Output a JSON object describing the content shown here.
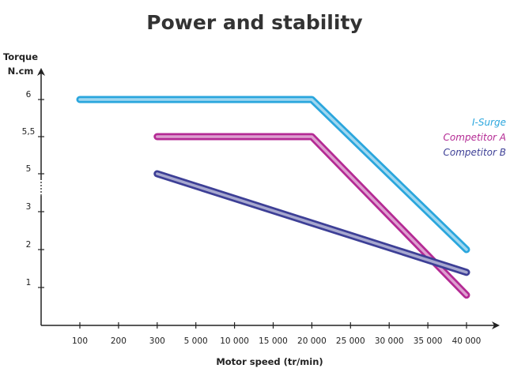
{
  "chart_data": {
    "type": "line",
    "title": "Power and stability",
    "xlabel": "Motor speed (tr/min)",
    "ylabel": "Torque",
    "ylabel_unit": "N.cm",
    "x_categories": [
      "100",
      "200",
      "300",
      "5 000",
      "10 000",
      "15 000",
      "20 000",
      "25 000",
      "30 000",
      "35 000",
      "40 000"
    ],
    "y_ticks": [
      "1",
      "2",
      "3",
      "5",
      "5,5",
      "6"
    ],
    "y_axis_break": "between 3 and 5",
    "grid": false,
    "legend_position": "right",
    "series": [
      {
        "name": "I-Surge",
        "color": "#2aa6dd",
        "points": [
          {
            "x": "100",
            "y": 6
          },
          {
            "x": "20 000",
            "y": 6
          },
          {
            "x": "40 000",
            "y": 2
          }
        ]
      },
      {
        "name": "Competitor A",
        "color": "#b42a94",
        "points": [
          {
            "x": "300",
            "y": 5.5
          },
          {
            "x": "20 000",
            "y": 5.5
          },
          {
            "x": "40 000",
            "y": 0.8
          }
        ]
      },
      {
        "name": "Competitor B",
        "color": "#3d3f96",
        "points": [
          {
            "x": "300",
            "y": 5
          },
          {
            "x": "40 000",
            "y": 1.4
          }
        ]
      }
    ]
  }
}
